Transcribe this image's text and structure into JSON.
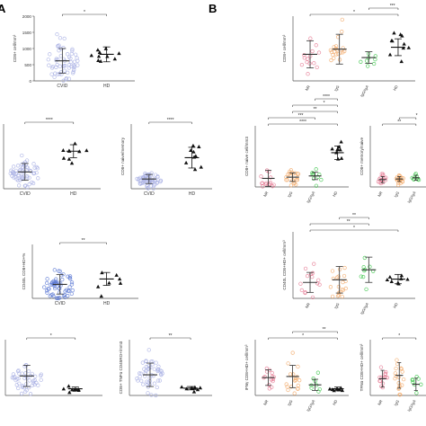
{
  "figure": {
    "panel_letters": [
      "A",
      "B"
    ]
  },
  "chart_data": [
    {
      "type": "scatter",
      "panel": "A",
      "ylabel": "CD8+ cell/mm³",
      "yticks": [
        "0",
        "500",
        "1000",
        "1500",
        "2000"
      ],
      "ylim": [
        0,
        2000
      ],
      "categories": [
        "CVID",
        "HD"
      ],
      "groups": [
        {
          "name": "CVID",
          "color": "#a9b0e4",
          "marker": "circle",
          "n": 60,
          "mean": 620,
          "sd": 380,
          "median": 560
        },
        {
          "name": "HD",
          "color": "#111111",
          "marker": "triangle",
          "n": 10,
          "mean": 820,
          "sd": 230,
          "median": 820
        }
      ],
      "comparisons": [
        {
          "label": "*",
          "from": "CVID",
          "to": "HD"
        }
      ]
    },
    {
      "type": "scatter",
      "panel": "A",
      "ylabel": "",
      "yticks": [],
      "ylim": [
        0,
        10
      ],
      "categories": [
        "CVID",
        "HD"
      ],
      "groups": [
        {
          "name": "CVID",
          "color": "#a9b0e4",
          "marker": "circle",
          "n": 60,
          "mean": 2.6,
          "sd": 1.3,
          "median": 2.4
        },
        {
          "name": "HD",
          "color": "#111111",
          "marker": "triangle",
          "n": 9,
          "mean": 5.8,
          "sd": 1.0,
          "median": 5.8
        }
      ],
      "comparisons": [
        {
          "label": "****",
          "from": "CVID",
          "to": "HD"
        }
      ]
    },
    {
      "type": "scatter",
      "panel": "A",
      "ylabel": "CD8+ naive/memory",
      "yticks": [],
      "ylim": [
        0,
        10
      ],
      "categories": [
        "CVID",
        "HD"
      ],
      "groups": [
        {
          "name": "CVID",
          "color": "#a9b0e4",
          "marker": "circle",
          "n": 60,
          "mean": 1.5,
          "sd": 0.7,
          "median": 1.3
        },
        {
          "name": "HD",
          "color": "#111111",
          "marker": "triangle",
          "n": 9,
          "mean": 4.8,
          "sd": 1.6,
          "median": 4.6
        }
      ],
      "comparisons": [
        {
          "label": "****",
          "from": "CVID",
          "to": "HD"
        }
      ]
    },
    {
      "type": "scatter",
      "panel": "A",
      "ylabel": "CD40L CD8+HD+%",
      "yticks": [],
      "ylim": [
        0,
        10
      ],
      "categories": [
        "CVID",
        "HD"
      ],
      "groups": [
        {
          "name": "CVID",
          "color": "#5a78d4",
          "marker": "circle",
          "n": 60,
          "mean": 2.6,
          "sd": 1.8,
          "median": 2.3
        },
        {
          "name": "HD",
          "color": "#111111",
          "marker": "triangle",
          "n": 7,
          "mean": 3.6,
          "sd": 1.2,
          "median": 3.5
        }
      ],
      "comparisons": [
        {
          "label": "**",
          "from": "CVID",
          "to": "HD"
        }
      ]
    },
    {
      "type": "scatter",
      "panel": "A",
      "ylabel": "",
      "yticks": [],
      "ylim": [
        0,
        10
      ],
      "categories": [],
      "groups": [
        {
          "name": "CVID",
          "color": "#a9b0e4",
          "marker": "circle",
          "n": 45,
          "mean": 3.5,
          "sd": 1.9,
          "median": 3.2
        },
        {
          "name": "HD",
          "color": "#111111",
          "marker": "triangle",
          "n": 8,
          "mean": 1.2,
          "sd": 0.3,
          "median": 1.2
        }
      ],
      "comparisons": [
        {
          "label": "*",
          "from": "CVID",
          "to": "HD"
        }
      ]
    },
    {
      "type": "scatter",
      "panel": "A",
      "ylabel": "CD8+ TNFα CD45RO+/mm3",
      "yticks": [],
      "ylim": [
        0,
        10
      ],
      "categories": [],
      "groups": [
        {
          "name": "CVID",
          "color": "#a9b0e4",
          "marker": "circle",
          "n": 50,
          "mean": 3.7,
          "sd": 2.1,
          "median": 3.3
        },
        {
          "name": "HD",
          "color": "#111111",
          "marker": "triangle",
          "n": 8,
          "mean": 1.3,
          "sd": 0.3,
          "median": 1.3
        }
      ],
      "comparisons": [
        {
          "label": "**",
          "from": "CVID",
          "to": "HD"
        }
      ]
    },
    {
      "type": "scatter",
      "panel": "B",
      "ylabel": "CD8+ cell/mm³",
      "yticks": [],
      "ylim": [
        0,
        10
      ],
      "categories": [
        "NR",
        "IgG",
        "IgG/IgA",
        "HD"
      ],
      "groups": [
        {
          "name": "NR",
          "color": "#e57892",
          "marker": "circle",
          "n": 14,
          "mean": 4.1,
          "sd": 2.1,
          "median": 3.8
        },
        {
          "name": "IgG",
          "color": "#f2a968",
          "marker": "circle",
          "n": 20,
          "mean": 4.9,
          "sd": 2.3,
          "median": 4.6
        },
        {
          "name": "IgG/IgA",
          "color": "#3cc64a",
          "marker": "circle",
          "n": 8,
          "mean": 3.6,
          "sd": 0.9,
          "median": 3.5
        },
        {
          "name": "HD",
          "color": "#111111",
          "marker": "triangle",
          "n": 10,
          "mean": 5.2,
          "sd": 1.3,
          "median": 5.2
        }
      ],
      "comparisons": [
        {
          "label": "*",
          "from": "NR",
          "to": "HD"
        },
        {
          "label": "***",
          "from": "IgG/IgA",
          "to": "HD"
        }
      ]
    },
    {
      "type": "scatter",
      "panel": "B",
      "ylabel": "CD8+ naive cell/mm3",
      "yticks": [],
      "ylim": [
        0,
        10
      ],
      "categories": [
        "NR",
        "IgG",
        "IgG/IgA",
        "HD"
      ],
      "groups": [
        {
          "name": "NR",
          "color": "#e57892",
          "marker": "circle",
          "n": 14,
          "mean": 1.4,
          "sd": 1.3,
          "median": 1.1
        },
        {
          "name": "IgG",
          "color": "#f2a968",
          "marker": "circle",
          "n": 22,
          "mean": 1.6,
          "sd": 0.7,
          "median": 1.5
        },
        {
          "name": "IgG/IgA",
          "color": "#3cc64a",
          "marker": "circle",
          "n": 9,
          "mean": 1.8,
          "sd": 0.6,
          "median": 1.7
        },
        {
          "name": "HD",
          "color": "#111111",
          "marker": "triangle",
          "n": 9,
          "mean": 5.6,
          "sd": 1.1,
          "median": 5.6
        }
      ],
      "comparisons": [
        {
          "label": "****",
          "from": "NR",
          "to": "HD"
        },
        {
          "label": "***",
          "from": "NR",
          "to": "IgG/IgA"
        },
        {
          "label": "**",
          "from": "IgG",
          "to": "HD"
        },
        {
          "label": "*",
          "from": "IgG",
          "to": "HD"
        },
        {
          "label": "****",
          "from": "IgG/IgA",
          "to": "HD"
        }
      ]
    },
    {
      "type": "scatter",
      "panel": "B",
      "ylabel": "CD8+ memory/naive",
      "yticks": [],
      "ylim": [
        0,
        10
      ],
      "categories": [
        "NR",
        "IgG",
        "IgG/IgA"
      ],
      "groups": [
        {
          "name": "NR",
          "color": "#e57892",
          "marker": "circle",
          "n": 14,
          "mean": 1.2,
          "sd": 0.5,
          "median": 1.1
        },
        {
          "name": "IgG",
          "color": "#f2a968",
          "marker": "circle",
          "n": 20,
          "mean": 1.3,
          "sd": 0.4,
          "median": 1.2
        },
        {
          "name": "IgG/IgA",
          "color": "#3cc64a",
          "marker": "circle",
          "n": 9,
          "mean": 1.5,
          "sd": 0.4,
          "median": 1.4
        }
      ],
      "comparisons": [
        {
          "label": "**",
          "from": "NR",
          "to": "IgG/IgA"
        },
        {
          "label": "*",
          "from": "IgG",
          "to": "IgG/IgA"
        }
      ]
    },
    {
      "type": "scatter",
      "panel": "B",
      "ylabel": "CD40L CD8+HD+ cell/mm³",
      "yticks": [],
      "ylim": [
        0,
        10
      ],
      "categories": [
        "NR",
        "IgG",
        "IgG/IgA",
        "HD"
      ],
      "groups": [
        {
          "name": "NR",
          "color": "#e57892",
          "marker": "circle",
          "n": 14,
          "mean": 2.4,
          "sd": 1.5,
          "median": 2.2
        },
        {
          "name": "IgG",
          "color": "#f2a968",
          "marker": "circle",
          "n": 20,
          "mean": 2.8,
          "sd": 2.0,
          "median": 2.5
        },
        {
          "name": "IgG/IgA",
          "color": "#3cc64a",
          "marker": "circle",
          "n": 9,
          "mean": 4.3,
          "sd": 1.9,
          "median": 4.2
        },
        {
          "name": "HD",
          "color": "#111111",
          "marker": "triangle",
          "n": 8,
          "mean": 2.9,
          "sd": 0.7,
          "median": 2.9
        }
      ],
      "comparisons": [
        {
          "label": "*",
          "from": "NR",
          "to": "HD"
        },
        {
          "label": "**",
          "from": "NR",
          "to": "IgG/IgA"
        },
        {
          "label": "**",
          "from": "IgG",
          "to": "IgG/IgA"
        }
      ]
    },
    {
      "type": "scatter",
      "panel": "B",
      "ylabel": "IFNγ CD8+HD+ cell/mm³",
      "yticks": [],
      "ylim": [
        0,
        10
      ],
      "categories": [
        "NR",
        "IgG",
        "IgG/IgA",
        "HD"
      ],
      "groups": [
        {
          "name": "NR",
          "color": "#e57892",
          "marker": "circle",
          "n": 14,
          "mean": 3.2,
          "sd": 1.4,
          "median": 3.0
        },
        {
          "name": "IgG",
          "color": "#f2a968",
          "marker": "circle",
          "n": 18,
          "mean": 3.4,
          "sd": 2.0,
          "median": 3.1
        },
        {
          "name": "IgG/IgA",
          "color": "#3cc64a",
          "marker": "circle",
          "n": 8,
          "mean": 1.9,
          "sd": 1.0,
          "median": 1.8
        },
        {
          "name": "HD",
          "color": "#111111",
          "marker": "triangle",
          "n": 8,
          "mean": 1.2,
          "sd": 0.3,
          "median": 1.2
        }
      ],
      "comparisons": [
        {
          "label": "*",
          "from": "NR",
          "to": "HD"
        },
        {
          "label": "**",
          "from": "IgG",
          "to": "HD"
        }
      ]
    },
    {
      "type": "scatter",
      "panel": "B",
      "ylabel": "TFNα CD8+HD+ cell/mm³",
      "yticks": [],
      "ylim": [
        0,
        10
      ],
      "categories": [
        "NR",
        "IgG",
        "IgG/IgA"
      ],
      "groups": [
        {
          "name": "NR",
          "color": "#e57892",
          "marker": "circle",
          "n": 14,
          "mean": 3.0,
          "sd": 1.5,
          "median": 2.8
        },
        {
          "name": "IgG",
          "color": "#f2a968",
          "marker": "circle",
          "n": 18,
          "mean": 3.6,
          "sd": 2.3,
          "median": 3.2
        },
        {
          "name": "IgG/IgA",
          "color": "#3cc64a",
          "marker": "circle",
          "n": 8,
          "mean": 2.0,
          "sd": 1.1,
          "median": 1.9
        }
      ],
      "comparisons": [
        {
          "label": "*",
          "from": "NR",
          "to": "IgG/IgA"
        }
      ]
    }
  ]
}
